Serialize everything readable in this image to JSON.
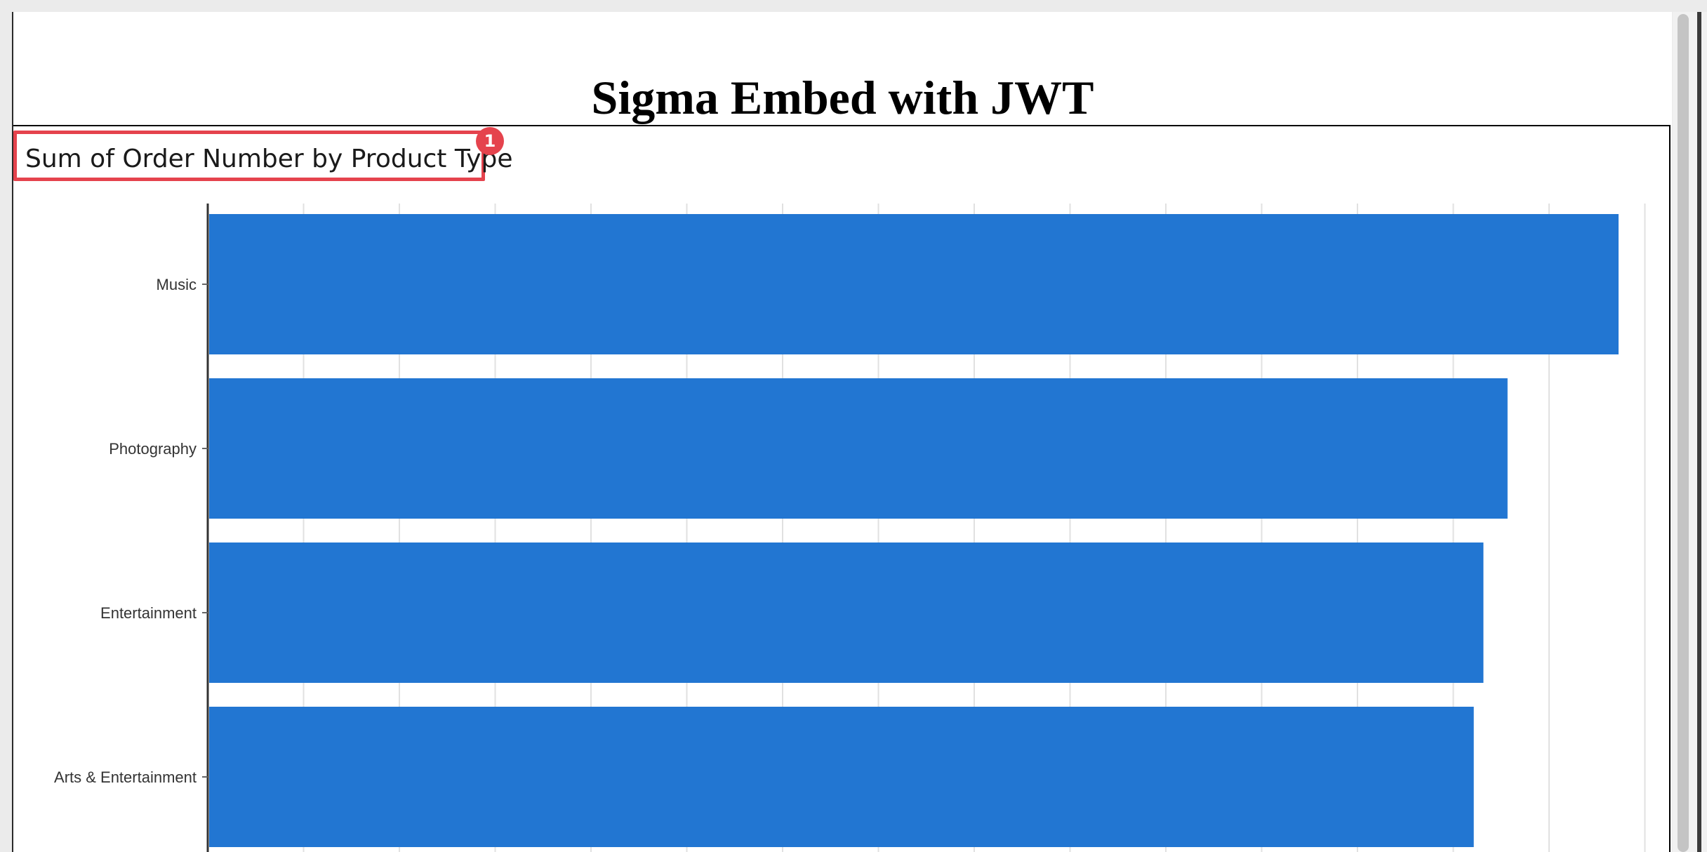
{
  "page": {
    "title": "Sigma Embed with JWT"
  },
  "annotation": {
    "badge": "1"
  },
  "chart_data": {
    "type": "bar",
    "orientation": "horizontal",
    "title": "Sum of Order Number by Product Type",
    "categories": [
      "Music",
      "Photography",
      "Entertainment",
      "Arts & Entertainment"
    ],
    "values": [
      14.6,
      13.45,
      13.2,
      13.1
    ],
    "xlim": [
      0,
      15
    ],
    "grid": true,
    "bar_color": "#2276d2"
  },
  "colors": {
    "highlight": "#e5434d",
    "bar": "#2276d2"
  }
}
